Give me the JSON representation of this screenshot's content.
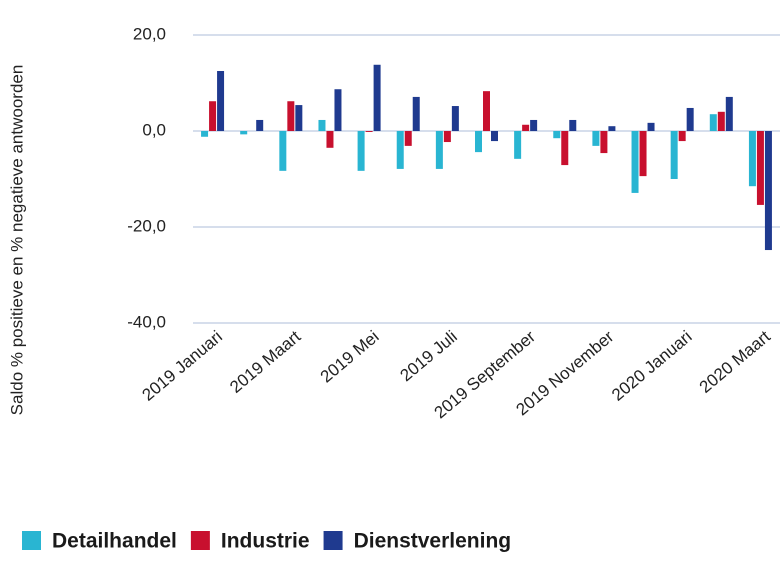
{
  "chart_data": {
    "type": "bar",
    "y_label": "Saldo % positieve en % negatieve antwoorden",
    "categories": [
      "2019 Januari",
      null,
      "2019 Maart",
      null,
      "2019 Mei",
      null,
      "2019 Juli",
      null,
      "2019 September",
      null,
      "2019 November",
      null,
      "2020 Januari",
      null,
      "2020 Maart"
    ],
    "series": [
      {
        "name": "Detailhandel",
        "color": "#29b5d2",
        "values": [
          -1.2,
          -0.7,
          -8.3,
          2.3,
          -8.3,
          -7.9,
          -7.9,
          -4.4,
          -5.8,
          -1.5,
          -3.1,
          -12.9,
          -10.0,
          3.5,
          -11.5
        ]
      },
      {
        "name": "Industrie",
        "color": "#c8102e",
        "values": [
          6.2,
          0,
          6.2,
          -3.5,
          -0.2,
          -3.1,
          -2.3,
          8.3,
          1.3,
          -7.1,
          -4.6,
          -9.4,
          -2.1,
          4.0,
          -15.4
        ]
      },
      {
        "name": "Dienstverlening",
        "color": "#1f3a8f",
        "values": [
          12.5,
          2.3,
          5.4,
          8.7,
          13.8,
          7.1,
          5.2,
          -2.1,
          2.3,
          2.3,
          1.0,
          1.7,
          4.8,
          7.1,
          -24.8
        ]
      }
    ],
    "ylim": [
      -40,
      20
    ],
    "yticks": [
      {
        "value": -40,
        "label": "-40,0"
      },
      {
        "value": -20,
        "label": "-20,0"
      },
      {
        "value": 0,
        "label": "0,0"
      },
      {
        "value": 20,
        "label": "20,0"
      }
    ],
    "grid": true
  }
}
